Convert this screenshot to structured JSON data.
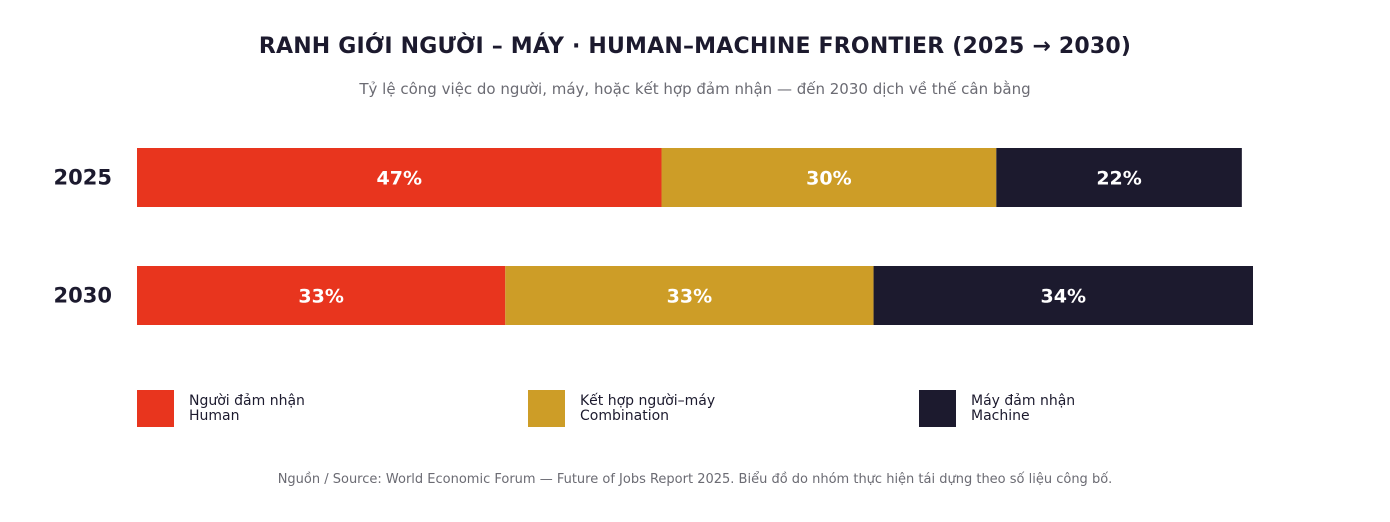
{
  "header": {
    "title": "RANH GIỚI NGƯỜI – MÁY · HUMAN–MACHINE FRONTIER (2025 → 2030)",
    "subtitle": "Tỷ lệ công việc do người, máy, hoặc kết hợp đảm nhận — đến 2030 dịch về thế cân bằng"
  },
  "chart_data": {
    "type": "bar",
    "orientation": "horizontal",
    "stacked": true,
    "categories": [
      "2025",
      "2030"
    ],
    "series": [
      {
        "name_vi": "Người đảm nhận",
        "name_en": "Human",
        "color": "#e8351e",
        "values": [
          47,
          33
        ],
        "labels": [
          "47%",
          "33%"
        ]
      },
      {
        "name_vi": "Kết hợp người–máy",
        "name_en": "Combination",
        "color": "#cd9d27",
        "values": [
          30,
          33
        ],
        "labels": [
          "30%",
          "33%"
        ]
      },
      {
        "name_vi": "Máy đảm nhận",
        "name_en": "Machine",
        "color": "#1c1a2e",
        "values": [
          22,
          34
        ],
        "labels": [
          "22%",
          "34%"
        ]
      }
    ],
    "grid": false,
    "legend": "bottom"
  },
  "footer": {
    "source": "Nguồn / Source: World Economic Forum — Future of Jobs Report 2025. Biểu đồ do nhóm thực hiện tái dựng theo số liệu công bố."
  }
}
